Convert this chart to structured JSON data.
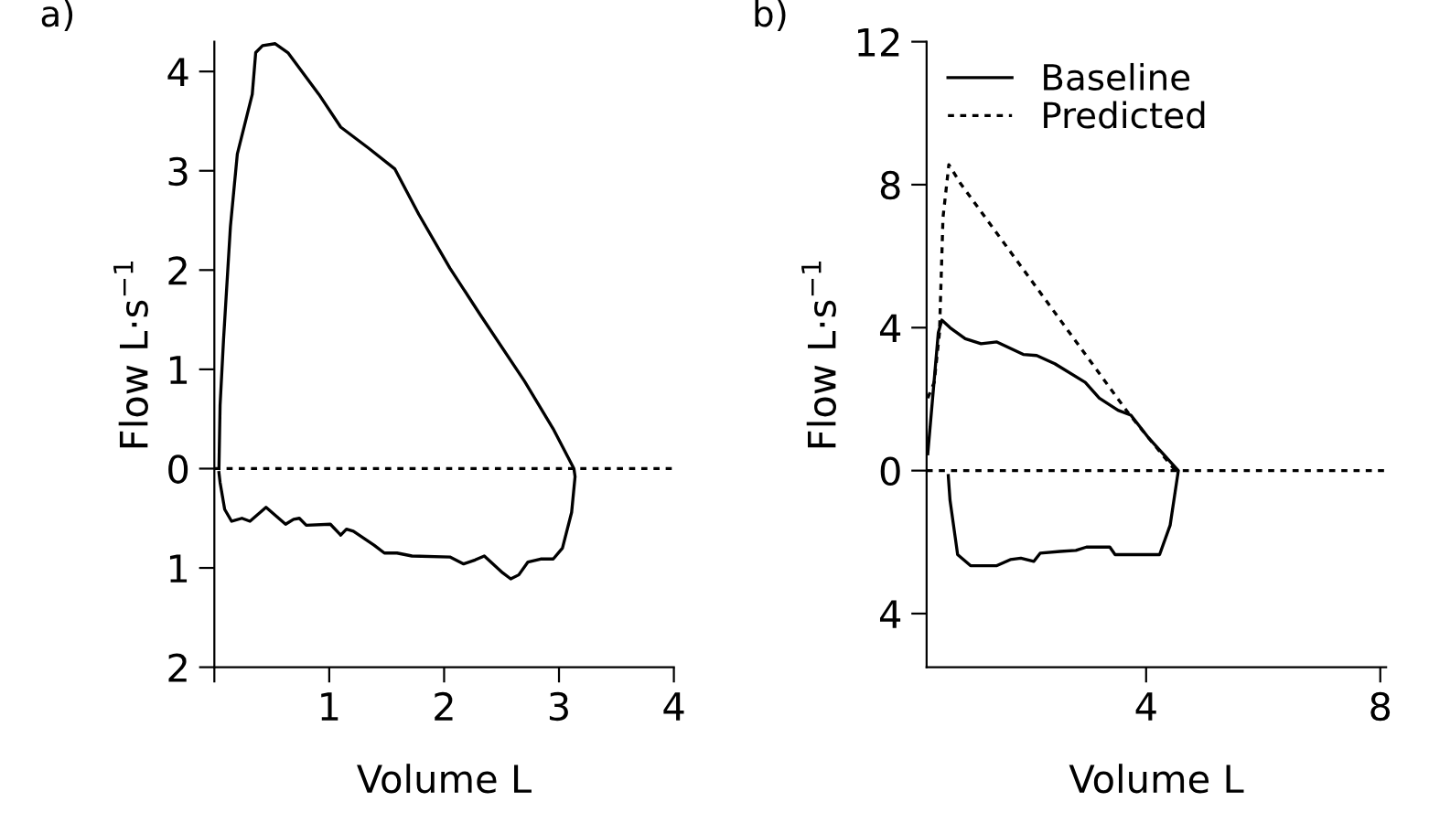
{
  "chart_data": [
    {
      "type": "line",
      "title": "a)",
      "xlabel": "Volume L",
      "ylabel": "Flow L·s$^{−1}$",
      "xlim": [
        0,
        4
      ],
      "ylim": [
        -2,
        4.3
      ],
      "xticks": [
        {
          "value": 0,
          "label": null
        },
        1,
        2,
        3,
        4
      ],
      "yticks": [
        4,
        3,
        2,
        1,
        0,
        {
          "value": -1,
          "label": "1"
        },
        {
          "value": -2,
          "label": "2"
        }
      ],
      "series": [
        {
          "color": "#000000",
          "line_style": "solid",
          "x": [
            0.04,
            0.05,
            0.08,
            0.14,
            0.2,
            0.33,
            0.36,
            0.42,
            0.53,
            0.64,
            0.91,
            1.1,
            1.34,
            1.57,
            1.78,
            2.05,
            2.32,
            2.7,
            2.95,
            3.13,
            3.14,
            3.11,
            3.03,
            2.95,
            2.84,
            2.73,
            2.65,
            2.58,
            2.51,
            2.35,
            2.27,
            2.17,
            2.05,
            1.72,
            1.59,
            1.48,
            1.39,
            1.21,
            1.15,
            1.1,
            1.01,
            0.8,
            0.74,
            0.69,
            0.62,
            0.45,
            0.31,
            0.24,
            0.15,
            0.09,
            0.05,
            0.04
          ],
          "values": [
            0,
            0.64,
            1.3,
            2.44,
            3.17,
            3.77,
            4.19,
            4.26,
            4.28,
            4.19,
            3.77,
            3.44,
            3.23,
            3.02,
            2.56,
            2.02,
            1.54,
            0.88,
            0.4,
            0,
            -0.08,
            -0.44,
            -0.8,
            -0.91,
            -0.91,
            -0.94,
            -1.07,
            -1.11,
            -1.05,
            -0.88,
            -0.92,
            -0.96,
            -0.89,
            -0.88,
            -0.85,
            -0.85,
            -0.77,
            -0.63,
            -0.61,
            -0.67,
            -0.56,
            -0.57,
            -0.5,
            -0.51,
            -0.56,
            -0.39,
            -0.53,
            -0.5,
            -0.53,
            -0.41,
            -0.14,
            -0.04
          ]
        }
      ],
      "ref_lines": [
        {
          "axis": "y",
          "value": 0,
          "line_style": "dotted",
          "color": "#000000"
        }
      ],
      "grid": false,
      "legend": false,
      "marker": "none"
    },
    {
      "type": "line",
      "title": "b)",
      "xlabel": "Volume L",
      "ylabel": "Flow L·s$^{−1}$",
      "xlim": [
        0.25,
        8.1
      ],
      "ylim": [
        -5.5,
        12
      ],
      "xticks": [
        4,
        8
      ],
      "yticks": [
        12,
        8,
        4,
        0,
        {
          "value": -4,
          "label": "4"
        }
      ],
      "series": [
        {
          "name": "Baseline",
          "color": "#000000",
          "line_style": "solid",
          "x": [
            0.27,
            0.45,
            0.51,
            0.65,
            0.91,
            1.18,
            1.45,
            1.9,
            2.13,
            2.44,
            2.96,
            3.2,
            3.52,
            3.74,
            4.05,
            4.55,
            4.41,
            4.23,
            3.87,
            3.47,
            3.38,
            2.98,
            2.8,
            2.53,
            2.19,
            2.08,
            1.86,
            1.68,
            1.45,
            1.0,
            0.78,
            0.74,
            0.65,
            0.62
          ],
          "values": [
            0.47,
            3.86,
            4.21,
            4.0,
            3.69,
            3.55,
            3.6,
            3.25,
            3.22,
            2.99,
            2.47,
            2.03,
            1.69,
            1.55,
            0.9,
            0,
            -1.53,
            -2.35,
            -2.35,
            -2.35,
            -2.14,
            -2.14,
            -2.23,
            -2.26,
            -2.31,
            -2.54,
            -2.45,
            -2.49,
            -2.66,
            -2.66,
            -2.35,
            -1.88,
            -0.83,
            -0.14
          ]
        },
        {
          "name": "Predicted",
          "color": "#000000",
          "line_style": "dotted",
          "x": [
            0.27,
            0.38,
            0.47,
            0.53,
            0.63,
            0.83,
            3.7,
            4.05,
            4.5
          ],
          "values": [
            2.03,
            2.47,
            3.86,
            7.08,
            8.56,
            8.03,
            1.6,
            0.9,
            0
          ]
        }
      ],
      "ref_lines": [
        {
          "axis": "y",
          "value": 0,
          "line_style": "dotted",
          "color": "#000000"
        }
      ],
      "grid": false,
      "legend": "top left",
      "marker": "none"
    }
  ]
}
